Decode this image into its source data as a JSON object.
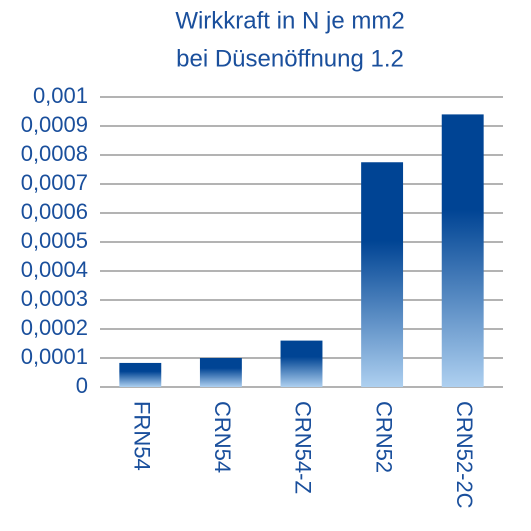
{
  "chart_data": {
    "type": "bar",
    "title": "Wirkkraft in N je mm2",
    "subtitle": "bei Düsenöffnung 1.2",
    "categories": [
      "FRN54",
      "CRN54",
      "CRN54-Z",
      "CRN52",
      "CRN52-2C"
    ],
    "values": [
      8.3e-05,
      0.0001,
      0.00016,
      0.000775,
      0.00094
    ],
    "color": "#004494",
    "ylim": [
      0,
      0.001
    ],
    "yticks": [
      0,
      {
        "value": 0.0001,
        "label": "0,0001"
      },
      {
        "value": 0.0002,
        "label": "0,0002"
      },
      {
        "value": 0.0003,
        "label": "0,0003"
      },
      {
        "value": 0.0004,
        "label": "0,0004"
      },
      {
        "value": 0.0005,
        "label": "0,0005"
      },
      {
        "value": 0.0006,
        "label": "0,0006"
      },
      {
        "value": 0.0007,
        "label": "0,0007"
      },
      {
        "value": 0.0008,
        "label": "0,0008"
      },
      {
        "value": 0.0009,
        "label": "0,0009"
      },
      {
        "value": 0.001,
        "label": "0,001"
      }
    ],
    "grid": true
  }
}
